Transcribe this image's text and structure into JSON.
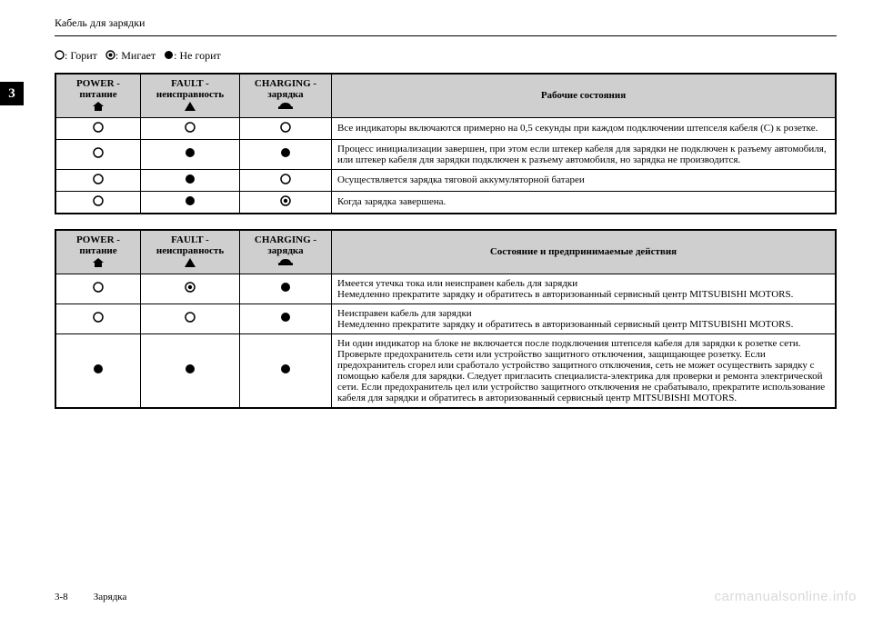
{
  "header": {
    "title": "Кабель для зарядки"
  },
  "legend": {
    "lit": ": Горит",
    "blink": ": Мигает",
    "off": ": Не горит"
  },
  "section_tab": "3",
  "symbols": {
    "lit_color": "#000000",
    "blink_inner": "#000000",
    "off_fill": "#000000"
  },
  "table1": {
    "headers": {
      "power": "POWER - питание",
      "fault": "FAULT - неисправность",
      "charging": "CHARGING - зарядка",
      "state": "Рабочие состояния"
    },
    "rows": [
      {
        "p": "lit",
        "f": "lit",
        "c": "lit",
        "d": "Все индикаторы включаются примерно на 0,5 секунды при каждом подключении штепселя кабеля (C) к розетке."
      },
      {
        "p": "lit",
        "f": "off",
        "c": "off",
        "d": "Процесс инициализации завершен, при этом если штекер кабеля для зарядки не подключен к разъему автомобиля, или штекер кабеля для зарядки подключен к разъему автомобиля, но зарядка не производится."
      },
      {
        "p": "lit",
        "f": "off",
        "c": "lit",
        "d": "Осуществляется зарядка тяговой аккумуляторной батареи"
      },
      {
        "p": "lit",
        "f": "off",
        "c": "blink",
        "d": "Когда зарядка завершена."
      }
    ]
  },
  "table2": {
    "headers": {
      "power": "POWER - питание",
      "fault": "FAULT - неисправность",
      "charging": "CHARGING - зарядка",
      "state": "Состояние и предпринимаемые действия"
    },
    "rows": [
      {
        "p": "lit",
        "f": "blink",
        "c": "off",
        "d": "Имеется утечка тока или неисправен кабель для зарядки\nНемедленно прекратите зарядку и обратитесь в авторизованный сервисный центр MITSUBISHI MOTORS."
      },
      {
        "p": "lit",
        "f": "lit",
        "c": "off",
        "d": "Неисправен кабель для зарядки\nНемедленно прекратите зарядку и обратитесь в авторизованный сервисный центр MITSUBISHI MOTORS."
      },
      {
        "p": "off",
        "f": "off",
        "c": "off",
        "d": "Ни один индикатор на блоке не включается после подключения штепселя кабеля для зарядки к розетке сети. Проверьте предохранитель сети или устройство защитного отключения, защищающее розетку. Если предохранитель сгорел или сработало устройство защитного отключения, сеть не может осуществить зарядку с помощью кабеля для зарядки. Следует пригласить специалиста-электрика для проверки и ремонта электрической сети. Если предохранитель цел или устройство защитного отключения не срабатывало, прекратите использование кабеля для зарядки и обратитесь в авторизованный сервисный центр MITSUBISHI MOTORS."
      }
    ]
  },
  "footer": {
    "page": "3-8",
    "section": "Зарядка"
  },
  "watermark": "carmanualsonline.info",
  "style": {
    "header_bg": "#cfcfcf",
    "border_color": "#000000",
    "body_font_size": 11,
    "legend_font_size": 12
  }
}
